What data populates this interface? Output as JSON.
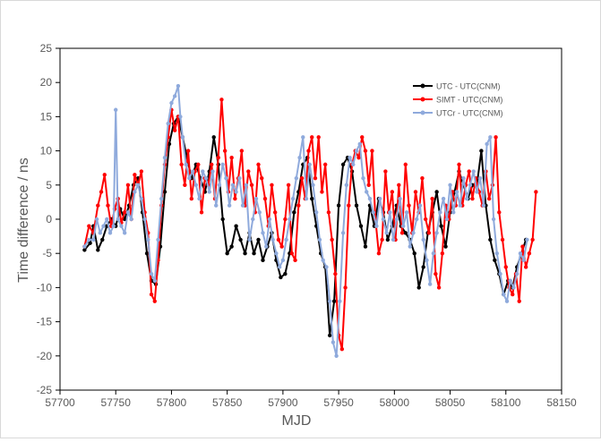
{
  "chart_data": {
    "type": "line",
    "xlabel": "MJD",
    "ylabel": "Time difference / ns",
    "xlim": [
      57700,
      58150
    ],
    "ylim": [
      -25,
      25
    ],
    "xticks": [
      57700,
      57750,
      57800,
      57850,
      57900,
      57950,
      58000,
      58050,
      58100,
      58150
    ],
    "yticks": [
      -25,
      -20,
      -15,
      -10,
      -5,
      0,
      5,
      10,
      15,
      20,
      25
    ],
    "grid": false,
    "legend_position": "top-right",
    "series": [
      {
        "name": "UTC - UTC(CNM)",
        "color": "#000000",
        "x": [
          57722,
          57727,
          57730,
          57734,
          57738,
          57742,
          57746,
          57750,
          57754,
          57758,
          57762,
          57766,
          57770,
          57774,
          57778,
          57782,
          57786,
          57790,
          57794,
          57798,
          57802,
          57806,
          57810,
          57814,
          57818,
          57822,
          57826,
          57830,
          57834,
          57838,
          57842,
          57846,
          57850,
          57854,
          57858,
          57862,
          57866,
          57870,
          57874,
          57878,
          57882,
          57886,
          57890,
          57894,
          57898,
          57902,
          57906,
          57910,
          57914,
          57918,
          57922,
          57926,
          57930,
          57934,
          57938,
          57942,
          57946,
          57950,
          57954,
          57958,
          57962,
          57966,
          57970,
          57974,
          57978,
          57982,
          57986,
          57990,
          57994,
          57998,
          58002,
          58006,
          58010,
          58014,
          58018,
          58022,
          58026,
          58030,
          58034,
          58038,
          58042,
          58046,
          58050,
          58054,
          58058,
          58062,
          58066,
          58070,
          58074,
          58078,
          58082,
          58086,
          58090,
          58094,
          58098,
          58102,
          58106,
          58110,
          58114,
          58118
        ],
        "values": [
          -4.5,
          -3.5,
          -1,
          -4.5,
          -3,
          -1,
          0,
          -1,
          1.5,
          0,
          2,
          5,
          6,
          1,
          -5,
          -9,
          -9.5,
          -4,
          4,
          11,
          14,
          15,
          12,
          9,
          6,
          8,
          6,
          4,
          7,
          12,
          8,
          0,
          -5,
          -4,
          -1,
          -3,
          -5,
          -2,
          -5,
          -3,
          -6,
          -4,
          -2,
          -6,
          -8.5,
          -8,
          -5,
          1,
          4,
          8,
          9,
          3,
          -1,
          -5,
          -7,
          -17,
          -12,
          2,
          8,
          9,
          7,
          2,
          -1,
          -4,
          2,
          -1,
          3,
          1,
          -3,
          -1,
          2,
          -1,
          -2,
          -3,
          -5,
          -10,
          -7,
          -2,
          1,
          4,
          -1,
          -4,
          1,
          4,
          7,
          5,
          3,
          5,
          5,
          10,
          2,
          -3,
          -6,
          -8,
          -11,
          -9,
          -10,
          -7,
          -5,
          -3
        ]
      },
      {
        "name": "SIMT - UTC(CNM)",
        "color": "#ff0000",
        "x": [
          57722,
          57726,
          57730,
          57734,
          57737,
          57740,
          57743,
          57746,
          57749,
          57752,
          57755,
          57758,
          57761,
          57764,
          57767,
          57770,
          57773,
          57776,
          57779,
          57782,
          57785,
          57788,
          57791,
          57794,
          57797,
          57800,
          57803,
          57806,
          57809,
          57812,
          57815,
          57818,
          57821,
          57824,
          57827,
          57830,
          57833,
          57836,
          57839,
          57842,
          57845,
          57848,
          57851,
          57854,
          57857,
          57860,
          57863,
          57866,
          57869,
          57872,
          57875,
          57878,
          57881,
          57884,
          57887,
          57890,
          57893,
          57896,
          57899,
          57902,
          57905,
          57908,
          57911,
          57914,
          57917,
          57920,
          57923,
          57926,
          57929,
          57932,
          57935,
          57938,
          57941,
          57944,
          57947,
          57950,
          57953,
          57956,
          57959,
          57962,
          57965,
          57968,
          57971,
          57974,
          57977,
          57980,
          57983,
          57986,
          57989,
          57992,
          57995,
          57998,
          58001,
          58004,
          58007,
          58010,
          58013,
          58016,
          58019,
          58022,
          58025,
          58028,
          58031,
          58034,
          58037,
          58040,
          58043,
          58046,
          58049,
          58052,
          58055,
          58058,
          58061,
          58064,
          58067,
          58070,
          58073,
          58076,
          58079,
          58082,
          58085,
          58088,
          58091,
          58094,
          58097,
          58100,
          58103,
          58106,
          58109,
          58112,
          58115,
          58118,
          58121,
          58124,
          58127
        ],
        "values": [
          -4,
          -1,
          -2,
          2,
          4,
          6.5,
          2,
          -1,
          1.5,
          3,
          -0.5,
          1,
          5,
          0,
          6.5,
          5,
          7,
          1,
          -2,
          -11,
          -12,
          -6,
          2,
          8,
          12,
          16,
          13,
          15,
          8,
          5,
          10,
          3,
          7,
          8,
          1,
          6,
          5,
          8,
          3,
          9,
          17.5,
          10,
          4,
          9,
          3,
          6,
          10,
          2,
          7,
          5,
          1,
          8,
          6,
          3,
          -1,
          5,
          1,
          -3,
          -4,
          0,
          5,
          -5,
          -6,
          2,
          6,
          3,
          10,
          12,
          6,
          12,
          4,
          8,
          1,
          -3,
          -8,
          -17,
          -19,
          -10,
          2,
          8,
          10,
          9,
          12,
          10,
          5,
          10,
          0,
          -5,
          -3,
          7,
          1,
          4,
          -3,
          5,
          -2,
          8,
          2,
          -2,
          4,
          1,
          6,
          0,
          -2,
          3,
          -8,
          -10,
          -5,
          2,
          0,
          4,
          2,
          8,
          2,
          5,
          7,
          3,
          6,
          4,
          2,
          7,
          3,
          5,
          12,
          1,
          -3,
          -7,
          -10,
          -11,
          -8,
          -12,
          -4,
          -7,
          -5,
          -3,
          4
        ]
      },
      {
        "name": "UTCr - UTC(CNM)",
        "color": "#8faadc",
        "x": [
          57722,
          57726,
          57730,
          57733,
          57736,
          57739,
          57742,
          57745,
          57748,
          57750,
          57752,
          57755,
          57758,
          57761,
          57764,
          57767,
          57770,
          57773,
          57776,
          57779,
          57782,
          57785,
          57788,
          57791,
          57794,
          57797,
          57800,
          57803,
          57806,
          57808,
          57810,
          57813,
          57816,
          57819,
          57822,
          57825,
          57828,
          57831,
          57834,
          57837,
          57840,
          57843,
          57846,
          57849,
          57852,
          57855,
          57858,
          57861,
          57864,
          57867,
          57870,
          57873,
          57876,
          57879,
          57882,
          57885,
          57888,
          57891,
          57894,
          57897,
          57900,
          57903,
          57906,
          57909,
          57912,
          57915,
          57918,
          57921,
          57924,
          57927,
          57930,
          57933,
          57936,
          57939,
          57942,
          57945,
          57948,
          57951,
          57954,
          57957,
          57960,
          57963,
          57966,
          57969,
          57972,
          57975,
          57978,
          57981,
          57984,
          57987,
          57990,
          57993,
          57996,
          57999,
          58002,
          58005,
          58008,
          58011,
          58014,
          58017,
          58020,
          58023,
          58026,
          58029,
          58032,
          58035,
          58038,
          58041,
          58044,
          58047,
          58050,
          58053,
          58056,
          58059,
          58062,
          58065,
          58068,
          58071,
          58074,
          58077,
          58080,
          58083,
          58086,
          58089,
          58092,
          58095,
          58098,
          58101,
          58104,
          58107,
          58110,
          58113,
          58116,
          58119
        ],
        "values": [
          -4,
          -3,
          -3,
          0,
          -2,
          -1,
          0,
          -2,
          -1,
          16,
          0,
          -1,
          -2,
          1,
          0,
          4,
          5,
          3,
          0,
          -3,
          -8,
          -9,
          -3,
          3,
          9,
          14,
          17,
          18,
          19.5,
          15,
          12,
          8,
          6,
          7,
          5,
          3,
          7,
          6,
          4,
          7,
          2,
          5,
          8,
          6,
          2,
          5,
          4,
          6,
          2,
          5,
          -3,
          0,
          3,
          1,
          -2,
          -4,
          0,
          -3,
          -5,
          -7,
          -6,
          -3,
          0,
          3,
          6,
          9,
          12,
          3,
          8,
          5,
          1,
          -3,
          -6,
          -7,
          -12,
          -18,
          -20,
          -12,
          -2,
          5,
          9,
          8,
          10,
          11,
          6,
          4,
          3,
          1,
          -1,
          3,
          0,
          -2,
          1,
          -3,
          0,
          3,
          -1,
          1,
          -4,
          -2,
          0,
          2,
          -3,
          -6,
          -9.5,
          -5,
          -2,
          1,
          3,
          0,
          5,
          1,
          4,
          2,
          6,
          3,
          5,
          7,
          4,
          6,
          2,
          11,
          12,
          0,
          -5,
          -8,
          -11,
          -12,
          -9,
          -10,
          -8,
          -5,
          -6,
          -3
        ]
      }
    ]
  }
}
